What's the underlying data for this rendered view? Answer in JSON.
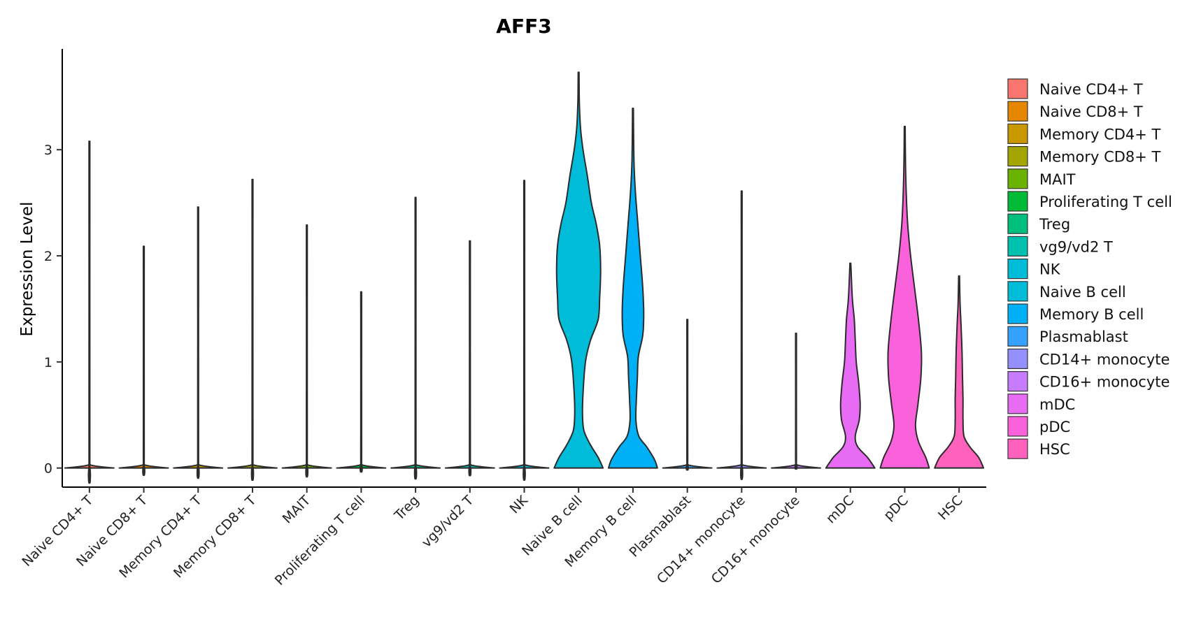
{
  "chart_data": {
    "type": "violin",
    "title": "AFF3",
    "ylabel": "Expression Level",
    "xlabel": "",
    "ylim": [
      -0.18,
      3.95
    ],
    "yticks": [
      0,
      1,
      2,
      3
    ],
    "grid": false,
    "legend_position": "right",
    "groups": [
      {
        "name": "Naive CD4+ T",
        "color": "#F8766D",
        "max": 3.08,
        "profile": [
          [
            0,
            0.5
          ],
          [
            0.03,
            0.02
          ],
          [
            0.1,
            0.005
          ],
          [
            3.08,
            0.005
          ]
        ]
      },
      {
        "name": "Naive CD8+ T",
        "color": "#E58700",
        "max": 2.09,
        "profile": [
          [
            0,
            0.5
          ],
          [
            0.03,
            0.02
          ],
          [
            0.1,
            0.005
          ],
          [
            2.09,
            0.005
          ]
        ]
      },
      {
        "name": "Memory CD4+ T",
        "color": "#C99800",
        "max": 2.46,
        "profile": [
          [
            0,
            0.5
          ],
          [
            0.03,
            0.02
          ],
          [
            0.1,
            0.005
          ],
          [
            2.46,
            0.005
          ]
        ]
      },
      {
        "name": "Memory CD8+ T",
        "color": "#A3A500",
        "max": 2.72,
        "profile": [
          [
            0,
            0.5
          ],
          [
            0.03,
            0.02
          ],
          [
            0.1,
            0.005
          ],
          [
            2.72,
            0.005
          ]
        ]
      },
      {
        "name": "MAIT",
        "color": "#6BB100",
        "max": 2.29,
        "profile": [
          [
            0,
            0.5
          ],
          [
            0.03,
            0.02
          ],
          [
            0.1,
            0.005
          ],
          [
            2.29,
            0.005
          ]
        ]
      },
      {
        "name": "Proliferating T cell",
        "color": "#00BA38",
        "max": 1.66,
        "profile": [
          [
            0,
            0.5
          ],
          [
            0.03,
            0.02
          ],
          [
            0.1,
            0.005
          ],
          [
            1.66,
            0.005
          ]
        ]
      },
      {
        "name": "Treg",
        "color": "#00BF7D",
        "max": 2.55,
        "profile": [
          [
            0,
            0.5
          ],
          [
            0.03,
            0.02
          ],
          [
            0.1,
            0.005
          ],
          [
            2.55,
            0.005
          ]
        ]
      },
      {
        "name": "vg9/vd2 T",
        "color": "#00C0AF",
        "max": 2.14,
        "profile": [
          [
            0,
            0.5
          ],
          [
            0.03,
            0.02
          ],
          [
            0.1,
            0.005
          ],
          [
            2.14,
            0.005
          ]
        ]
      },
      {
        "name": "NK",
        "color": "#00BCD8",
        "max": 2.71,
        "profile": [
          [
            0,
            0.5
          ],
          [
            0.03,
            0.02
          ],
          [
            0.1,
            0.005
          ],
          [
            2.71,
            0.005
          ]
        ]
      },
      {
        "name": "Naive B cell",
        "color": "#00BCD8",
        "max": 3.73,
        "profile": [
          [
            0,
            0.5
          ],
          [
            0.1,
            0.4
          ],
          [
            0.22,
            0.24
          ],
          [
            0.35,
            0.11
          ],
          [
            0.5,
            0.08
          ],
          [
            0.7,
            0.09
          ],
          [
            1.0,
            0.14
          ],
          [
            1.2,
            0.24
          ],
          [
            1.4,
            0.4
          ],
          [
            1.6,
            0.43
          ],
          [
            1.85,
            0.45
          ],
          [
            2.1,
            0.43
          ],
          [
            2.3,
            0.36
          ],
          [
            2.5,
            0.26
          ],
          [
            2.75,
            0.18
          ],
          [
            3.0,
            0.09
          ],
          [
            3.2,
            0.04
          ],
          [
            3.45,
            0.015
          ],
          [
            3.73,
            0.005
          ]
        ]
      },
      {
        "name": "Memory B cell",
        "color": "#00B0F6",
        "max": 3.39,
        "profile": [
          [
            0,
            0.5
          ],
          [
            0.08,
            0.44
          ],
          [
            0.2,
            0.28
          ],
          [
            0.3,
            0.12
          ],
          [
            0.45,
            0.06
          ],
          [
            0.65,
            0.07
          ],
          [
            0.85,
            0.09
          ],
          [
            1.05,
            0.11
          ],
          [
            1.25,
            0.2
          ],
          [
            1.45,
            0.22
          ],
          [
            1.7,
            0.2
          ],
          [
            2.0,
            0.15
          ],
          [
            2.3,
            0.1
          ],
          [
            2.6,
            0.05
          ],
          [
            2.9,
            0.02
          ],
          [
            3.39,
            0.005
          ]
        ]
      },
      {
        "name": "Plasmablast",
        "color": "#35A2FF",
        "max": 1.4,
        "profile": [
          [
            0,
            0.5
          ],
          [
            0.03,
            0.02
          ],
          [
            0.1,
            0.005
          ],
          [
            1.4,
            0.005
          ]
        ]
      },
      {
        "name": "CD14+ monocyte",
        "color": "#9590FF",
        "max": 2.61,
        "profile": [
          [
            0,
            0.5
          ],
          [
            0.03,
            0.02
          ],
          [
            0.1,
            0.005
          ],
          [
            2.61,
            0.005
          ]
        ]
      },
      {
        "name": "CD16+ monocyte",
        "color": "#C77CFF",
        "max": 1.27,
        "profile": [
          [
            0,
            0.5
          ],
          [
            0.03,
            0.02
          ],
          [
            0.1,
            0.005
          ],
          [
            1.27,
            0.005
          ]
        ]
      },
      {
        "name": "mDC",
        "color": "#E76BF3",
        "max": 1.93,
        "profile": [
          [
            0,
            0.5
          ],
          [
            0.1,
            0.35
          ],
          [
            0.2,
            0.15
          ],
          [
            0.3,
            0.1
          ],
          [
            0.45,
            0.18
          ],
          [
            0.6,
            0.2
          ],
          [
            0.8,
            0.17
          ],
          [
            1.0,
            0.12
          ],
          [
            1.2,
            0.1
          ],
          [
            1.4,
            0.08
          ],
          [
            1.6,
            0.04
          ],
          [
            1.93,
            0.005
          ]
        ]
      },
      {
        "name": "pDC",
        "color": "#FA62DB",
        "max": 3.22,
        "profile": [
          [
            0,
            0.5
          ],
          [
            0.1,
            0.43
          ],
          [
            0.25,
            0.28
          ],
          [
            0.4,
            0.22
          ],
          [
            0.6,
            0.27
          ],
          [
            0.85,
            0.33
          ],
          [
            1.1,
            0.34
          ],
          [
            1.4,
            0.28
          ],
          [
            1.7,
            0.2
          ],
          [
            2.0,
            0.12
          ],
          [
            2.3,
            0.06
          ],
          [
            2.6,
            0.03
          ],
          [
            2.9,
            0.015
          ],
          [
            3.22,
            0.005
          ]
        ]
      },
      {
        "name": "HSC",
        "color": "#FF62BC",
        "max": 1.81,
        "profile": [
          [
            0,
            0.5
          ],
          [
            0.1,
            0.4
          ],
          [
            0.2,
            0.22
          ],
          [
            0.3,
            0.1
          ],
          [
            0.45,
            0.08
          ],
          [
            0.65,
            0.08
          ],
          [
            0.85,
            0.07
          ],
          [
            1.1,
            0.06
          ],
          [
            1.35,
            0.04
          ],
          [
            1.55,
            0.02
          ],
          [
            1.81,
            0.005
          ]
        ]
      }
    ]
  }
}
